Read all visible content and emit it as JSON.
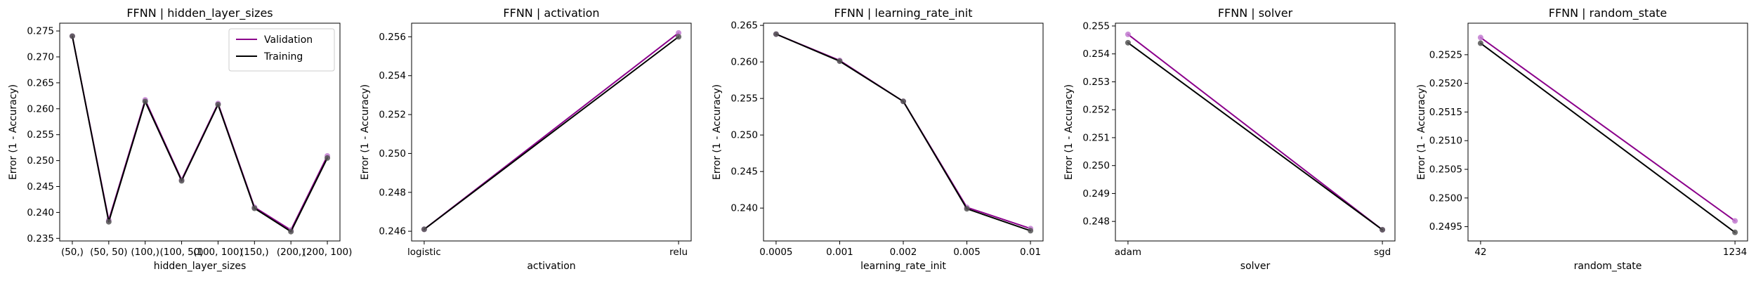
{
  "figure": {
    "colors": {
      "validation": "#8b008b",
      "training": "#000000",
      "validation_marker": "#c27bd0",
      "training_marker": "#555555"
    }
  },
  "chart_data": [
    {
      "type": "line",
      "title": "FFNN | hidden_layer_sizes",
      "xlabel": "hidden_layer_sizes",
      "ylabel": "Error (1 - Accuracy)",
      "categories": [
        "(50,)",
        "(50, 50)",
        "(100,)",
        "(100, 50)",
        "(100, 100)",
        "(150,)",
        "(200,)",
        "(200, 100)"
      ],
      "ylim": [
        0.2345,
        0.2765
      ],
      "yticks": [
        0.235,
        0.24,
        0.245,
        0.25,
        0.255,
        0.26,
        0.265,
        0.27,
        0.275
      ],
      "ytick_labels": [
        "0.235",
        "0.240",
        "0.245",
        "0.250",
        "0.255",
        "0.260",
        "0.265",
        "0.270",
        "0.275"
      ],
      "legend": {
        "show": true,
        "placement": "top-right"
      },
      "series": [
        {
          "name": "Validation",
          "color_key": "validation",
          "values": [
            0.274,
            0.2385,
            0.2617,
            0.2463,
            0.261,
            0.241,
            0.2366,
            0.2509
          ]
        },
        {
          "name": "Training",
          "color_key": "training",
          "values": [
            0.274,
            0.2382,
            0.2614,
            0.2461,
            0.2608,
            0.2408,
            0.2363,
            0.2505
          ]
        }
      ]
    },
    {
      "type": "line",
      "title": "FFNN | activation",
      "xlabel": "activation",
      "ylabel": "Error (1 - Accuracy)",
      "categories": [
        "logistic",
        "relu"
      ],
      "ylim": [
        0.2455,
        0.2567
      ],
      "yticks": [
        0.246,
        0.248,
        0.25,
        0.252,
        0.254,
        0.256
      ],
      "ytick_labels": [
        "0.246",
        "0.248",
        "0.250",
        "0.252",
        "0.254",
        "0.256"
      ],
      "legend": {
        "show": false
      },
      "series": [
        {
          "name": "Validation",
          "color_key": "validation",
          "values": [
            0.2461,
            0.2562
          ]
        },
        {
          "name": "Training",
          "color_key": "training",
          "values": [
            0.2461,
            0.256
          ]
        }
      ]
    },
    {
      "type": "line",
      "title": "FFNN | learning_rate_init",
      "xlabel": "learning_rate_init",
      "ylabel": "Error (1 - Accuracy)",
      "categories": [
        "0.0005",
        "0.001",
        "0.002",
        "0.005",
        "0.01"
      ],
      "ylim": [
        0.2355,
        0.2653
      ],
      "yticks": [
        0.24,
        0.245,
        0.25,
        0.255,
        0.26,
        0.265
      ],
      "ytick_labels": [
        "0.240",
        "0.245",
        "0.250",
        "0.255",
        "0.260",
        "0.265"
      ],
      "legend": {
        "show": false
      },
      "series": [
        {
          "name": "Validation",
          "color_key": "validation",
          "values": [
            0.2638,
            0.2602,
            0.2546,
            0.2401,
            0.2372
          ]
        },
        {
          "name": "Training",
          "color_key": "training",
          "values": [
            0.2638,
            0.2601,
            0.2546,
            0.2399,
            0.2369
          ]
        }
      ]
    },
    {
      "type": "line",
      "title": "FFNN | solver",
      "xlabel": "solver",
      "ylabel": "Error (1 - Accuracy)",
      "categories": [
        "adam",
        "sgd"
      ],
      "ylim": [
        0.2473,
        0.2551
      ],
      "yticks": [
        0.248,
        0.249,
        0.25,
        0.251,
        0.252,
        0.253,
        0.254,
        0.255
      ],
      "ytick_labels": [
        "0.248",
        "0.249",
        "0.250",
        "0.251",
        "0.252",
        "0.253",
        "0.254",
        "0.255"
      ],
      "legend": {
        "show": false
      },
      "series": [
        {
          "name": "Validation",
          "color_key": "validation",
          "values": [
            0.2547,
            0.2477
          ]
        },
        {
          "name": "Training",
          "color_key": "training",
          "values": [
            0.2544,
            0.2477
          ]
        }
      ]
    },
    {
      "type": "line",
      "title": "FFNN | random_state",
      "xlabel": "random_state",
      "ylabel": "Error (1 - Accuracy)",
      "categories": [
        "42",
        "1234"
      ],
      "ylim": [
        0.24925,
        0.25305
      ],
      "yticks": [
        0.2495,
        0.25,
        0.2505,
        0.251,
        0.2515,
        0.252,
        0.2525
      ],
      "ytick_labels": [
        "0.2495",
        "0.2500",
        "0.2505",
        "0.2510",
        "0.2515",
        "0.2520",
        "0.2525"
      ],
      "legend": {
        "show": false
      },
      "series": [
        {
          "name": "Validation",
          "color_key": "validation",
          "values": [
            0.2528,
            0.2496
          ]
        },
        {
          "name": "Training",
          "color_key": "training",
          "values": [
            0.2527,
            0.2494
          ]
        }
      ]
    }
  ]
}
